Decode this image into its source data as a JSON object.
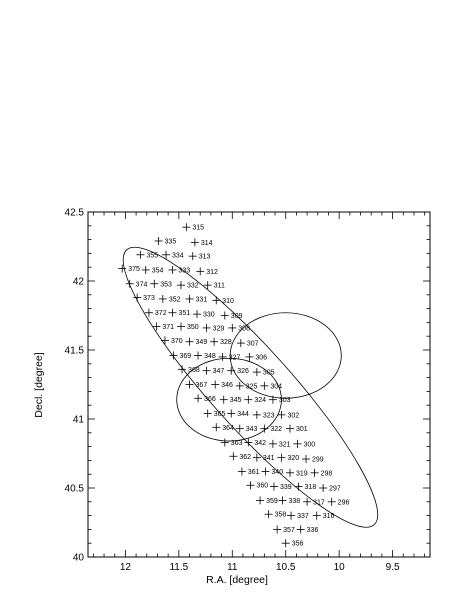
{
  "chart_data": {
    "type": "scatter",
    "xlabel": "R.A. [degree]",
    "ylabel": "Decl. [degree]",
    "xlim": [
      12.35,
      9.15
    ],
    "ylim": [
      40.0,
      42.5
    ],
    "x_reversed": true,
    "x_ticks": [
      {
        "value": 12,
        "label": "12"
      },
      {
        "value": 11.5,
        "label": "11.5"
      },
      {
        "value": 11,
        "label": "11"
      },
      {
        "value": 10.5,
        "label": "10.5"
      },
      {
        "value": 10,
        "label": "10"
      },
      {
        "value": 9.5,
        "label": "9.5"
      }
    ],
    "y_ticks": [
      {
        "value": 40,
        "label": "40"
      },
      {
        "value": 40.5,
        "label": "40.5"
      },
      {
        "value": 41,
        "label": "41"
      },
      {
        "value": 41.5,
        "label": "41.5"
      },
      {
        "value": 42,
        "label": "42"
      },
      {
        "value": 42.5,
        "label": "42.5"
      }
    ],
    "grid": false,
    "points": [
      {
        "label": "315",
        "ra": 11.43,
        "dec": 42.39
      },
      {
        "label": "335",
        "ra": 11.69,
        "dec": 42.29
      },
      {
        "label": "314",
        "ra": 11.35,
        "dec": 42.28
      },
      {
        "label": "355",
        "ra": 11.86,
        "dec": 42.19
      },
      {
        "label": "334",
        "ra": 11.62,
        "dec": 42.19
      },
      {
        "label": "313",
        "ra": 11.37,
        "dec": 42.18
      },
      {
        "label": "375",
        "ra": 12.03,
        "dec": 42.09
      },
      {
        "label": "354",
        "ra": 11.81,
        "dec": 42.08
      },
      {
        "label": "333",
        "ra": 11.56,
        "dec": 42.08
      },
      {
        "label": "312",
        "ra": 11.3,
        "dec": 42.07
      },
      {
        "label": "374",
        "ra": 11.96,
        "dec": 41.98
      },
      {
        "label": "353",
        "ra": 11.73,
        "dec": 41.98
      },
      {
        "label": "332",
        "ra": 11.48,
        "dec": 41.97
      },
      {
        "label": "311",
        "ra": 11.23,
        "dec": 41.97
      },
      {
        "label": "373",
        "ra": 11.89,
        "dec": 41.88
      },
      {
        "label": "352",
        "ra": 11.65,
        "dec": 41.87
      },
      {
        "label": "331",
        "ra": 11.4,
        "dec": 41.87
      },
      {
        "label": "310",
        "ra": 11.15,
        "dec": 41.86
      },
      {
        "label": "372",
        "ra": 11.78,
        "dec": 41.77
      },
      {
        "label": "351",
        "ra": 11.56,
        "dec": 41.77
      },
      {
        "label": "330",
        "ra": 11.33,
        "dec": 41.76
      },
      {
        "label": "309",
        "ra": 11.07,
        "dec": 41.75
      },
      {
        "label": "371",
        "ra": 11.71,
        "dec": 41.67
      },
      {
        "label": "350",
        "ra": 11.48,
        "dec": 41.67
      },
      {
        "label": "329",
        "ra": 11.24,
        "dec": 41.66
      },
      {
        "label": "308",
        "ra": 11.0,
        "dec": 41.66
      },
      {
        "label": "370",
        "ra": 11.63,
        "dec": 41.57
      },
      {
        "label": "349",
        "ra": 11.4,
        "dec": 41.56
      },
      {
        "label": "328",
        "ra": 11.17,
        "dec": 41.56
      },
      {
        "label": "307",
        "ra": 10.92,
        "dec": 41.55
      },
      {
        "label": "369",
        "ra": 11.55,
        "dec": 41.46
      },
      {
        "label": "348",
        "ra": 11.32,
        "dec": 41.46
      },
      {
        "label": "327",
        "ra": 11.09,
        "dec": 41.45
      },
      {
        "label": "306",
        "ra": 10.84,
        "dec": 41.45
      },
      {
        "label": "368",
        "ra": 11.47,
        "dec": 41.36
      },
      {
        "label": "347",
        "ra": 11.24,
        "dec": 41.35
      },
      {
        "label": "326",
        "ra": 11.01,
        "dec": 41.35
      },
      {
        "label": "305",
        "ra": 10.77,
        "dec": 41.34
      },
      {
        "label": "367",
        "ra": 11.4,
        "dec": 41.25
      },
      {
        "label": "346",
        "ra": 11.16,
        "dec": 41.25
      },
      {
        "label": "325",
        "ra": 10.93,
        "dec": 41.24
      },
      {
        "label": "304",
        "ra": 10.7,
        "dec": 41.24
      },
      {
        "label": "366",
        "ra": 11.32,
        "dec": 41.15
      },
      {
        "label": "345",
        "ra": 11.08,
        "dec": 41.14
      },
      {
        "label": "324",
        "ra": 10.85,
        "dec": 41.14
      },
      {
        "label": "303",
        "ra": 10.62,
        "dec": 41.14
      },
      {
        "label": "365",
        "ra": 11.23,
        "dec": 41.04
      },
      {
        "label": "344",
        "ra": 11.01,
        "dec": 41.04
      },
      {
        "label": "323",
        "ra": 10.77,
        "dec": 41.03
      },
      {
        "label": "302",
        "ra": 10.54,
        "dec": 41.03
      },
      {
        "label": "364",
        "ra": 11.15,
        "dec": 40.94
      },
      {
        "label": "343",
        "ra": 10.93,
        "dec": 40.93
      },
      {
        "label": "322",
        "ra": 10.7,
        "dec": 40.93
      },
      {
        "label": "301",
        "ra": 10.46,
        "dec": 40.93
      },
      {
        "label": "363",
        "ra": 11.07,
        "dec": 40.83
      },
      {
        "label": "342",
        "ra": 10.85,
        "dec": 40.83
      },
      {
        "label": "321",
        "ra": 10.62,
        "dec": 40.82
      },
      {
        "label": "300",
        "ra": 10.39,
        "dec": 40.82
      },
      {
        "label": "362",
        "ra": 10.99,
        "dec": 40.73
      },
      {
        "label": "341",
        "ra": 10.77,
        "dec": 40.72
      },
      {
        "label": "320",
        "ra": 10.54,
        "dec": 40.72
      },
      {
        "label": "299",
        "ra": 10.31,
        "dec": 40.71
      },
      {
        "label": "361",
        "ra": 10.91,
        "dec": 40.62
      },
      {
        "label": "340",
        "ra": 10.69,
        "dec": 40.62
      },
      {
        "label": "319",
        "ra": 10.46,
        "dec": 40.61
      },
      {
        "label": "298",
        "ra": 10.23,
        "dec": 40.61
      },
      {
        "label": "360",
        "ra": 10.83,
        "dec": 40.52
      },
      {
        "label": "339",
        "ra": 10.61,
        "dec": 40.51
      },
      {
        "label": "318",
        "ra": 10.38,
        "dec": 40.51
      },
      {
        "label": "297",
        "ra": 10.15,
        "dec": 40.5
      },
      {
        "label": "359",
        "ra": 10.74,
        "dec": 40.41
      },
      {
        "label": "338",
        "ra": 10.53,
        "dec": 40.41
      },
      {
        "label": "317",
        "ra": 10.3,
        "dec": 40.4
      },
      {
        "label": "296",
        "ra": 10.07,
        "dec": 40.4
      },
      {
        "label": "358",
        "ra": 10.66,
        "dec": 40.31
      },
      {
        "label": "337",
        "ra": 10.45,
        "dec": 40.3
      },
      {
        "label": "316",
        "ra": 10.21,
        "dec": 40.3
      },
      {
        "label": "357",
        "ra": 10.58,
        "dec": 40.2
      },
      {
        "label": "336",
        "ra": 10.36,
        "dec": 40.2
      },
      {
        "label": "356",
        "ra": 10.5,
        "dec": 40.1
      }
    ],
    "ellipses": [
      {
        "name": "large",
        "center_ra": 10.83,
        "center_dec": 41.23,
        "semi_major_deg_dec": 1.34,
        "semi_minor_deg_dec": 0.29,
        "angle_deg": 42
      },
      {
        "name": "small-upper",
        "center_ra": 10.5,
        "center_dec": 41.46,
        "r_ra": 0.52,
        "r_dec": 0.31
      },
      {
        "name": "small-lower",
        "center_ra": 11.03,
        "center_dec": 41.14,
        "r_ra": 0.49,
        "r_dec": 0.3
      }
    ]
  }
}
